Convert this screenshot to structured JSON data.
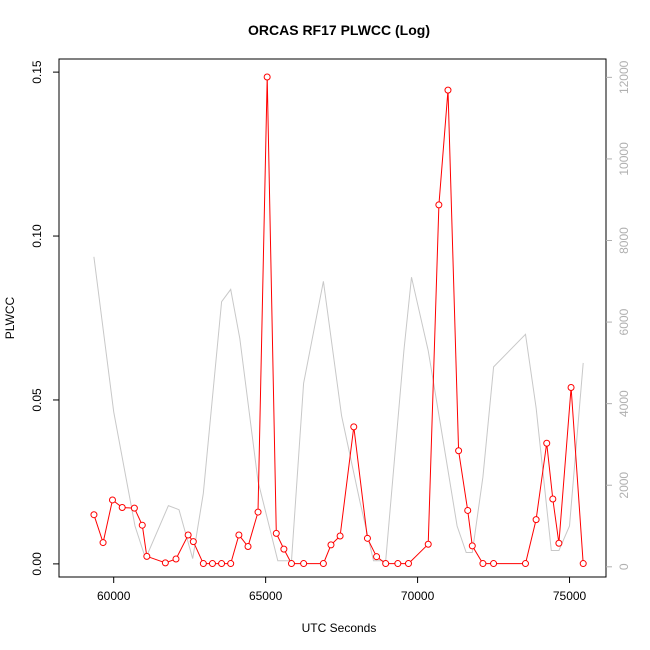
{
  "chart_data": {
    "type": "line",
    "title": "ORCAS RF17 PLWCC (Log)",
    "xlabel": "UTC Seconds",
    "ylabel": "PLWCC",
    "xlim": [
      58200,
      76200
    ],
    "ylim": [
      -0.004,
      0.154
    ],
    "y2lim": [
      -250,
      12450
    ],
    "x_ticks": [
      60000,
      65000,
      70000,
      75000
    ],
    "x_tick_labels": [
      "60000",
      "65000",
      "70000",
      "75000"
    ],
    "y_ticks": [
      0.0,
      0.05,
      0.1,
      0.15
    ],
    "y_tick_labels": [
      "0.00",
      "0.05",
      "0.10",
      "0.15"
    ],
    "y2_ticks": [
      0,
      2000,
      4000,
      6000,
      8000,
      10000,
      12000
    ],
    "y2_tick_labels": [
      "0",
      "2000",
      "4000",
      "6000",
      "8000",
      "10000",
      "12000"
    ],
    "series": [
      {
        "axis": "left",
        "color": "#ff0000",
        "style": "line-circles",
        "points": [
          [
            59350,
            0.015
          ],
          [
            59650,
            0.0065
          ],
          [
            59960,
            0.0195
          ],
          [
            60280,
            0.0172
          ],
          [
            60680,
            0.017
          ],
          [
            60940,
            0.0118
          ],
          [
            61090,
            0.0023
          ],
          [
            61700,
            0.0003
          ],
          [
            62050,
            0.0015
          ],
          [
            62450,
            0.0088
          ],
          [
            62620,
            0.0068
          ],
          [
            62950,
            0.0001
          ],
          [
            63250,
            0.0001
          ],
          [
            63550,
            0.0001
          ],
          [
            63850,
            0.0001
          ],
          [
            64120,
            0.0088
          ],
          [
            64420,
            0.0053
          ],
          [
            64750,
            0.0158
          ],
          [
            65050,
            0.1485
          ],
          [
            65350,
            0.0093
          ],
          [
            65600,
            0.0045
          ],
          [
            65850,
            0.0001
          ],
          [
            66250,
            0.0001
          ],
          [
            66900,
            0.0001
          ],
          [
            67150,
            0.0058
          ],
          [
            67450,
            0.0085
          ],
          [
            67900,
            0.0418
          ],
          [
            68350,
            0.0078
          ],
          [
            68650,
            0.0022
          ],
          [
            68950,
            0.0001
          ],
          [
            69350,
            0.0001
          ],
          [
            69700,
            0.0001
          ],
          [
            70350,
            0.006
          ],
          [
            70700,
            0.1095
          ],
          [
            71000,
            0.1445
          ],
          [
            71350,
            0.0345
          ],
          [
            71650,
            0.0163
          ],
          [
            71800,
            0.0055
          ],
          [
            72150,
            0.0001
          ],
          [
            72500,
            0.0001
          ],
          [
            73550,
            0.0001
          ],
          [
            73900,
            0.0135
          ],
          [
            74250,
            0.0368
          ],
          [
            74450,
            0.0198
          ],
          [
            74650,
            0.0063
          ],
          [
            75050,
            0.0538
          ],
          [
            75450,
            0.0001
          ]
        ]
      },
      {
        "axis": "right",
        "color": "#c8c8c8",
        "style": "line",
        "points": [
          [
            59350,
            7600
          ],
          [
            60000,
            3800
          ],
          [
            60700,
            1000
          ],
          [
            61050,
            200
          ],
          [
            61800,
            1500
          ],
          [
            62150,
            1400
          ],
          [
            62600,
            200
          ],
          [
            62950,
            1800
          ],
          [
            63550,
            6500
          ],
          [
            63850,
            6800
          ],
          [
            64150,
            5600
          ],
          [
            64750,
            2100
          ],
          [
            65250,
            600
          ],
          [
            65400,
            150
          ],
          [
            65850,
            150
          ],
          [
            66250,
            4500
          ],
          [
            66900,
            7000
          ],
          [
            67500,
            3700
          ],
          [
            68100,
            1600
          ],
          [
            68550,
            150
          ],
          [
            68950,
            150
          ],
          [
            69550,
            5300
          ],
          [
            69800,
            7100
          ],
          [
            70350,
            5300
          ],
          [
            70750,
            3500
          ],
          [
            71300,
            1000
          ],
          [
            71600,
            350
          ],
          [
            71800,
            350
          ],
          [
            72150,
            2200
          ],
          [
            72500,
            4900
          ],
          [
            73550,
            5700
          ],
          [
            73900,
            3900
          ],
          [
            74400,
            400
          ],
          [
            74650,
            400
          ],
          [
            75000,
            1000
          ],
          [
            75450,
            5000
          ]
        ]
      }
    ]
  }
}
